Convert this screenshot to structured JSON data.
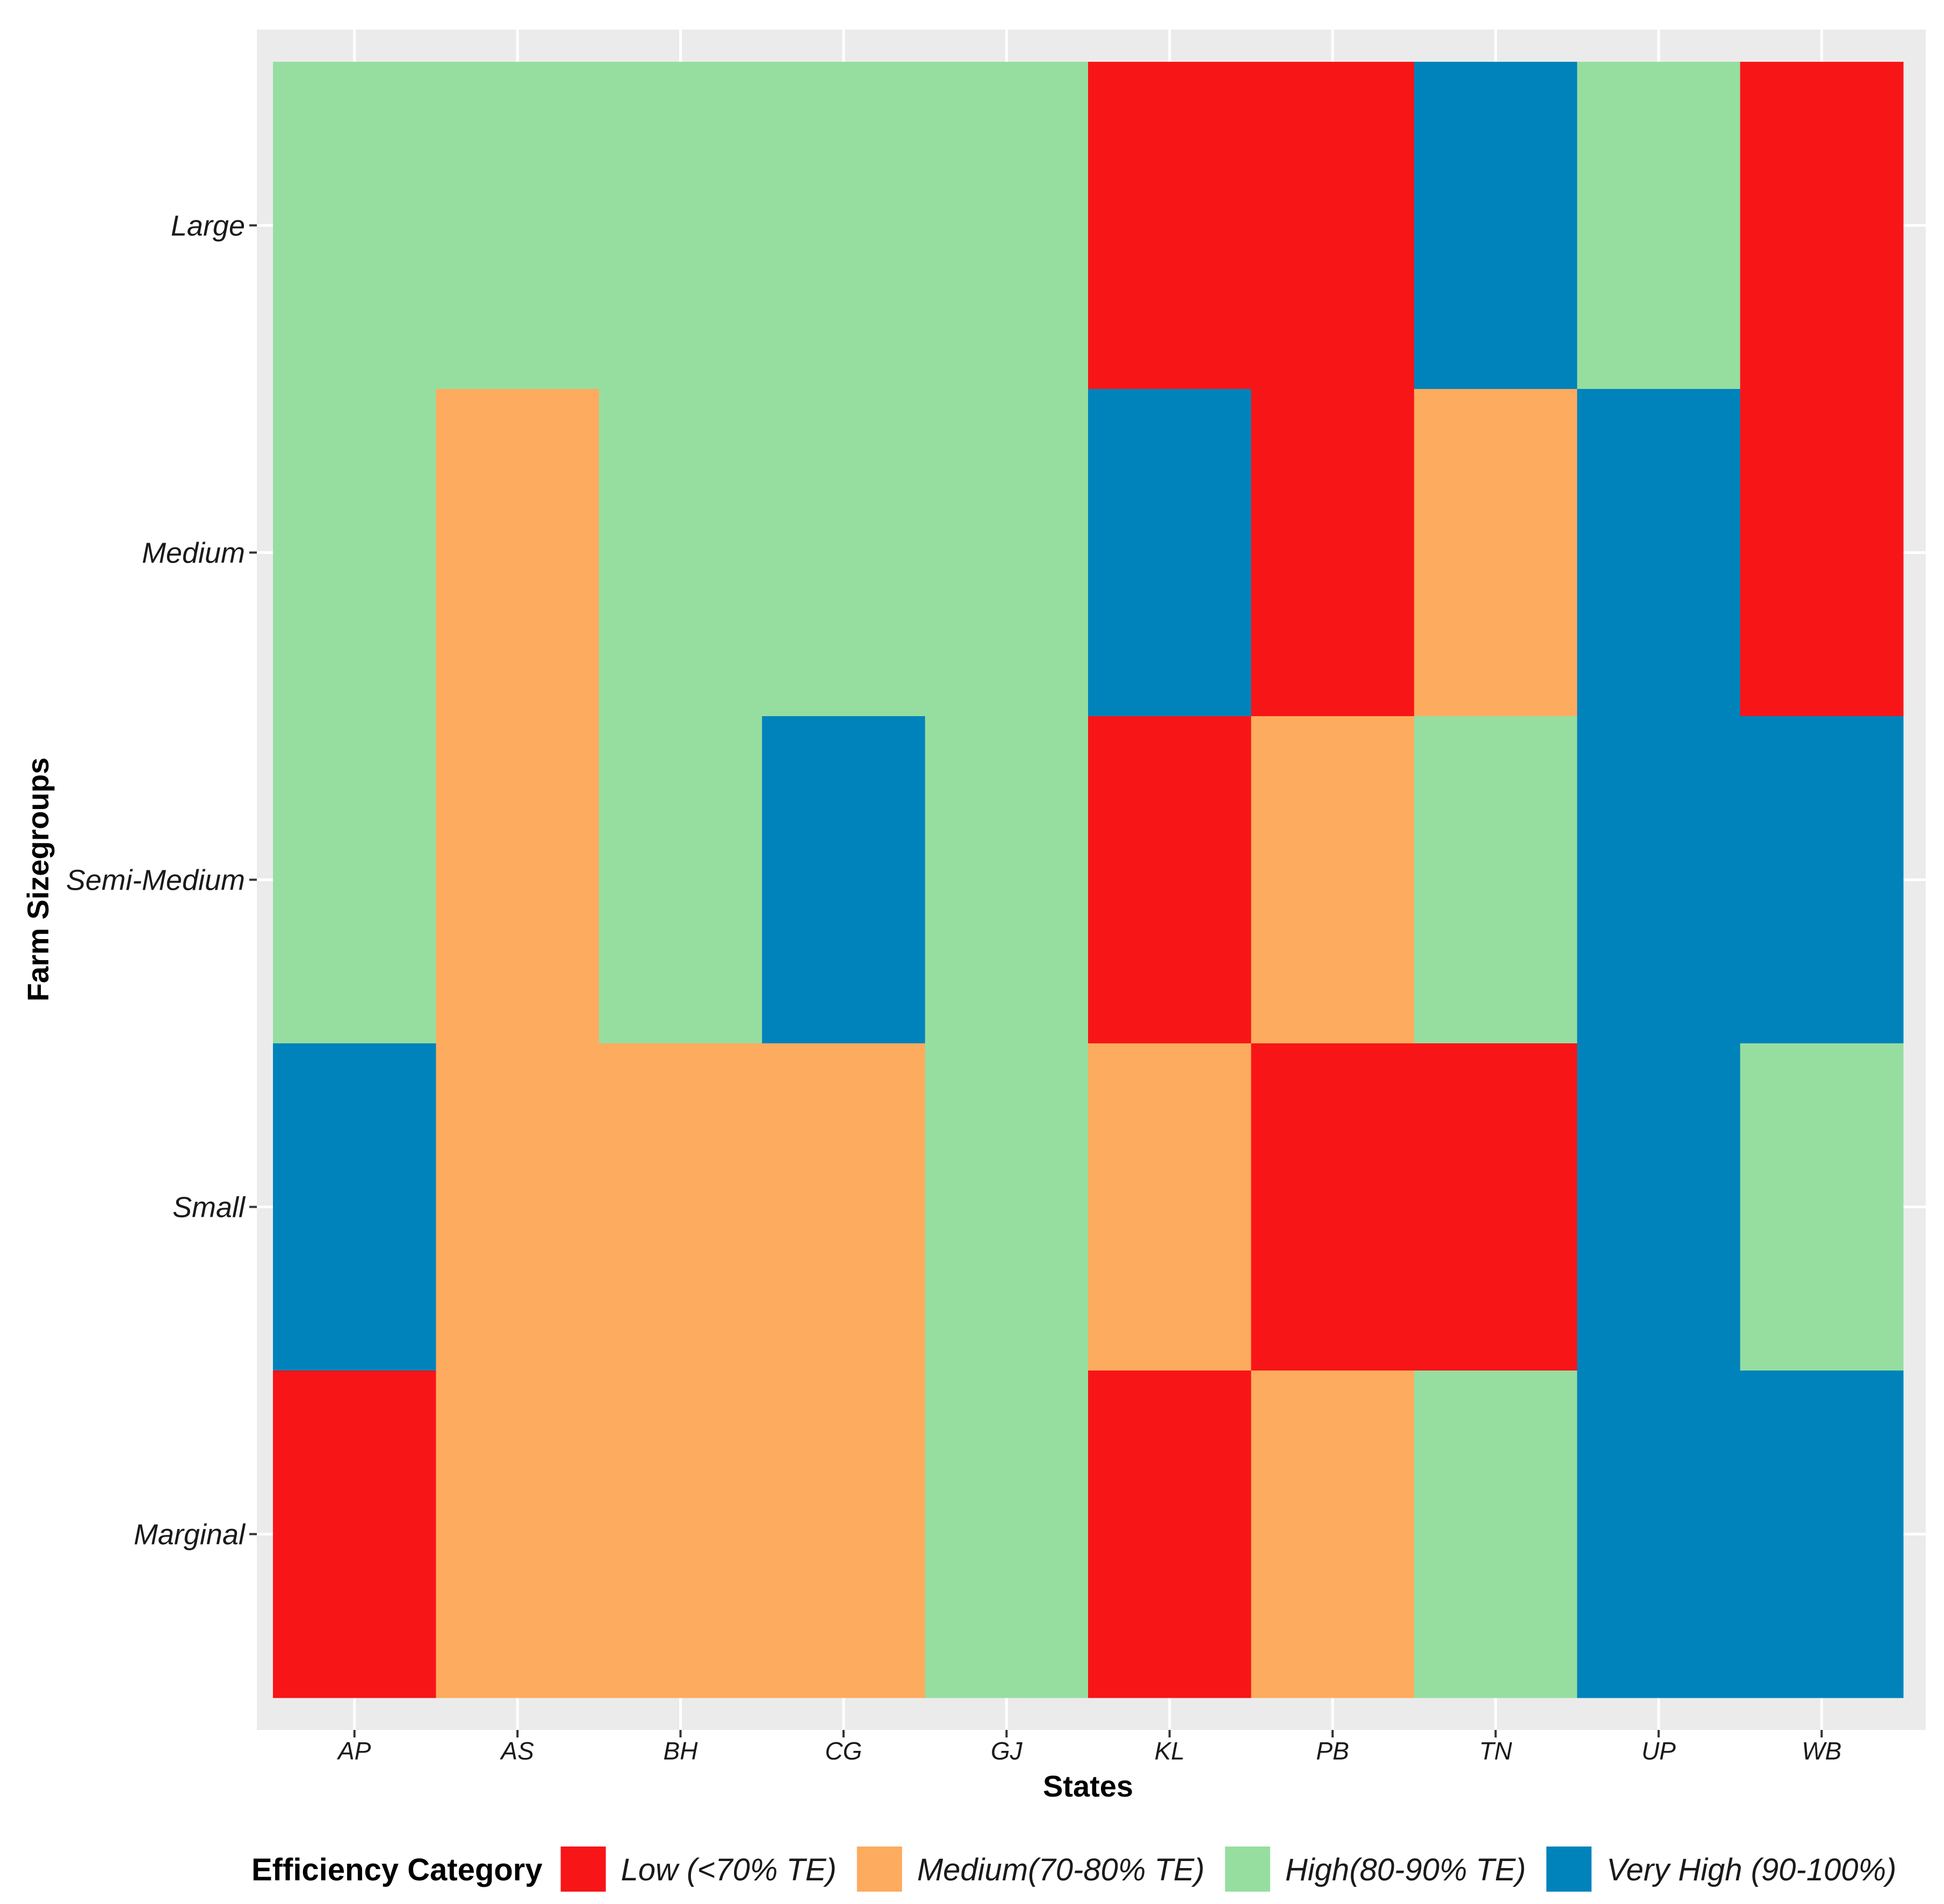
{
  "chart_data": {
    "type": "heatmap",
    "title": "",
    "xlabel": "States",
    "ylabel": "Farm Sizegroups",
    "x_categories": [
      "AP",
      "AS",
      "BH",
      "CG",
      "GJ",
      "KL",
      "PB",
      "TN",
      "UP",
      "WB"
    ],
    "y_categories": [
      "Large",
      "Medium",
      "Semi-Medium",
      "Small",
      "Marginal"
    ],
    "cells": [
      [
        "High",
        "High",
        "High",
        "High",
        "High",
        "Low",
        "Low",
        "Very High",
        "High",
        "Low"
      ],
      [
        "High",
        "Medium",
        "High",
        "High",
        "High",
        "Very High",
        "Low",
        "Medium",
        "Very High",
        "Low"
      ],
      [
        "High",
        "Medium",
        "High",
        "Very High",
        "High",
        "Low",
        "Medium",
        "High",
        "Very High",
        "Very High"
      ],
      [
        "Very High",
        "Medium",
        "Medium",
        "Medium",
        "High",
        "Medium",
        "Low",
        "Low",
        "Very High",
        "High"
      ],
      [
        "Low",
        "Medium",
        "Medium",
        "Medium",
        "High",
        "Low",
        "Medium",
        "High",
        "Very High",
        "Very High"
      ]
    ],
    "legend": {
      "title": "Efficiency Category",
      "placement": "bottom",
      "entries": [
        {
          "key": "Low",
          "label": "Low (<70% TE)",
          "color": "#f81518"
        },
        {
          "key": "Medium",
          "label": "Medium(70-80% TE)",
          "color": "#fdab5e"
        },
        {
          "key": "High",
          "label": "High(80-90% TE)",
          "color": "#96dea0"
        },
        {
          "key": "Very High",
          "label": "Very High (90-100%)",
          "color": "#0083bb"
        }
      ]
    },
    "grid": true,
    "panel_background": "#ebebeb",
    "grid_color": "#ffffff"
  }
}
